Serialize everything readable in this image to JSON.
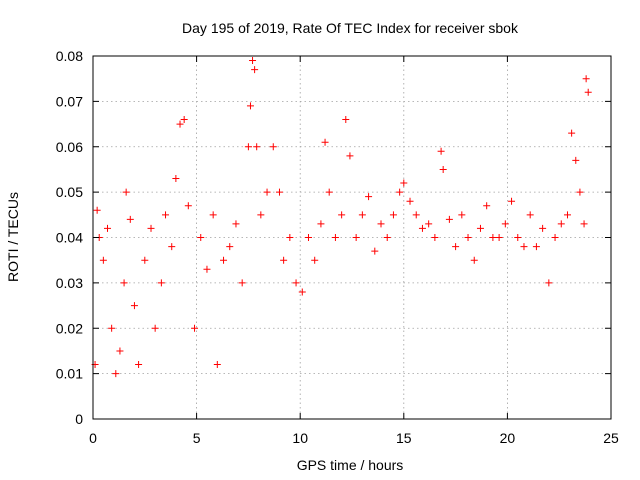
{
  "chart_data": {
    "type": "scatter",
    "title": "Day 195 of 2019, Rate Of TEC Index for receiver sbok",
    "xlabel": "GPS time / hours",
    "ylabel": "ROTI / TECUs",
    "xlim": [
      0,
      25
    ],
    "ylim": [
      0,
      0.08
    ],
    "xticks": [
      0,
      5,
      10,
      15,
      20,
      25
    ],
    "xtick_labels": [
      "0",
      "5",
      "10",
      "15",
      "20",
      "25"
    ],
    "yticks": [
      0,
      0.01,
      0.02,
      0.03,
      0.04,
      0.05,
      0.06,
      0.07,
      0.08
    ],
    "ytick_labels": [
      "0",
      "0.01",
      "0.02",
      "0.03",
      "0.04",
      "0.05",
      "0.06",
      "0.07",
      "0.08"
    ],
    "grid": true,
    "marker": "plus",
    "color": "#ff0000",
    "series": [
      {
        "name": "ROTI",
        "x": [
          0.1,
          0.2,
          0.3,
          0.5,
          0.7,
          0.9,
          1.1,
          1.3,
          1.5,
          1.6,
          1.8,
          2.0,
          2.2,
          2.5,
          2.8,
          3.0,
          3.3,
          3.5,
          3.8,
          4.0,
          4.2,
          4.4,
          4.6,
          4.9,
          5.2,
          5.5,
          5.8,
          6.0,
          6.3,
          6.6,
          6.9,
          7.2,
          7.5,
          7.6,
          7.7,
          7.8,
          7.9,
          8.1,
          8.4,
          8.7,
          9.0,
          9.2,
          9.5,
          9.8,
          10.1,
          10.4,
          10.7,
          11.0,
          11.2,
          11.4,
          11.7,
          12.0,
          12.2,
          12.4,
          12.7,
          13.0,
          13.3,
          13.6,
          13.9,
          14.2,
          14.5,
          14.8,
          15.0,
          15.3,
          15.6,
          15.9,
          16.2,
          16.5,
          16.8,
          16.9,
          17.2,
          17.5,
          17.8,
          18.1,
          18.4,
          18.7,
          19.0,
          19.3,
          19.6,
          19.9,
          20.2,
          20.5,
          20.8,
          21.1,
          21.4,
          21.7,
          22.0,
          22.3,
          22.6,
          22.9,
          23.1,
          23.3,
          23.5,
          23.7,
          23.8,
          23.9
        ],
        "y": [
          0.012,
          0.046,
          0.04,
          0.035,
          0.042,
          0.02,
          0.01,
          0.015,
          0.03,
          0.05,
          0.044,
          0.025,
          0.012,
          0.035,
          0.042,
          0.02,
          0.03,
          0.045,
          0.038,
          0.053,
          0.065,
          0.066,
          0.047,
          0.02,
          0.04,
          0.033,
          0.045,
          0.012,
          0.035,
          0.038,
          0.043,
          0.03,
          0.06,
          0.069,
          0.079,
          0.077,
          0.06,
          0.045,
          0.05,
          0.06,
          0.05,
          0.035,
          0.04,
          0.03,
          0.028,
          0.04,
          0.035,
          0.043,
          0.061,
          0.05,
          0.04,
          0.045,
          0.066,
          0.058,
          0.04,
          0.045,
          0.049,
          0.037,
          0.043,
          0.04,
          0.045,
          0.05,
          0.052,
          0.048,
          0.045,
          0.042,
          0.043,
          0.04,
          0.059,
          0.055,
          0.044,
          0.038,
          0.045,
          0.04,
          0.035,
          0.042,
          0.047,
          0.04,
          0.04,
          0.043,
          0.048,
          0.04,
          0.038,
          0.045,
          0.038,
          0.042,
          0.03,
          0.04,
          0.043,
          0.045,
          0.063,
          0.057,
          0.05,
          0.043,
          0.075,
          0.072
        ]
      }
    ]
  }
}
